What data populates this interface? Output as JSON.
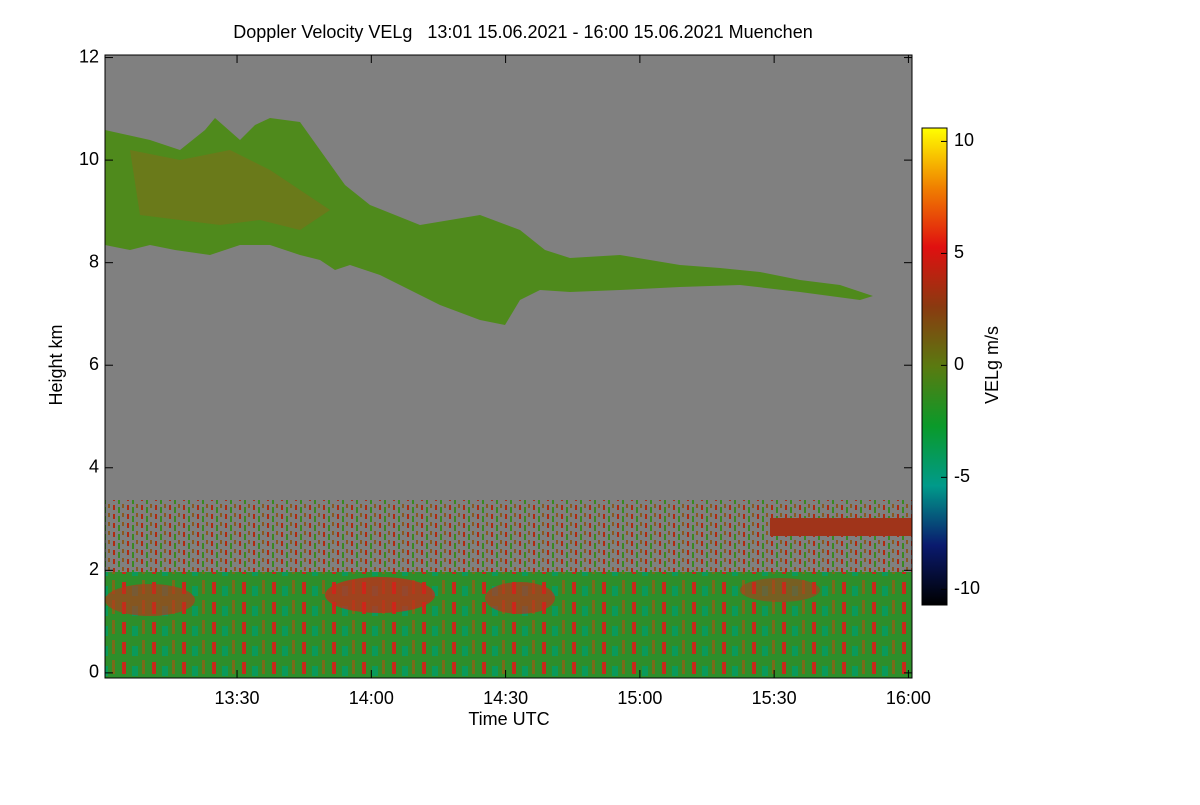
{
  "chart_data": {
    "type": "heatmap",
    "title": "Doppler Velocity VELg   13:01 15.06.2021 - 16:00 15.06.2021 Muenchen",
    "xlabel": "Time UTC",
    "ylabel": "Height km",
    "colorbar_label": "VELg m/s",
    "xlim": [
      780.5,
      960.8
    ],
    "xticks": [
      {
        "value": 810,
        "label": "13:30"
      },
      {
        "value": 840,
        "label": "14:00"
      },
      {
        "value": 870,
        "label": "14:30"
      },
      {
        "value": 900,
        "label": "15:00"
      },
      {
        "value": 930,
        "label": "15:30"
      },
      {
        "value": 960,
        "label": "16:00"
      }
    ],
    "ylim": [
      -0.1,
      12.05
    ],
    "yticks": [
      0,
      2,
      4,
      6,
      8,
      10,
      12
    ],
    "zlim": [
      -10.7,
      10.6
    ],
    "zticks": [
      -10,
      -5,
      0,
      5,
      10
    ],
    "colorscale": [
      "#000000",
      "#0a1a6e",
      "#009a8a",
      "#0a9a2a",
      "#5a7a10",
      "#8a3a10",
      "#e01010",
      "#f08000",
      "#ffff00"
    ]
  }
}
